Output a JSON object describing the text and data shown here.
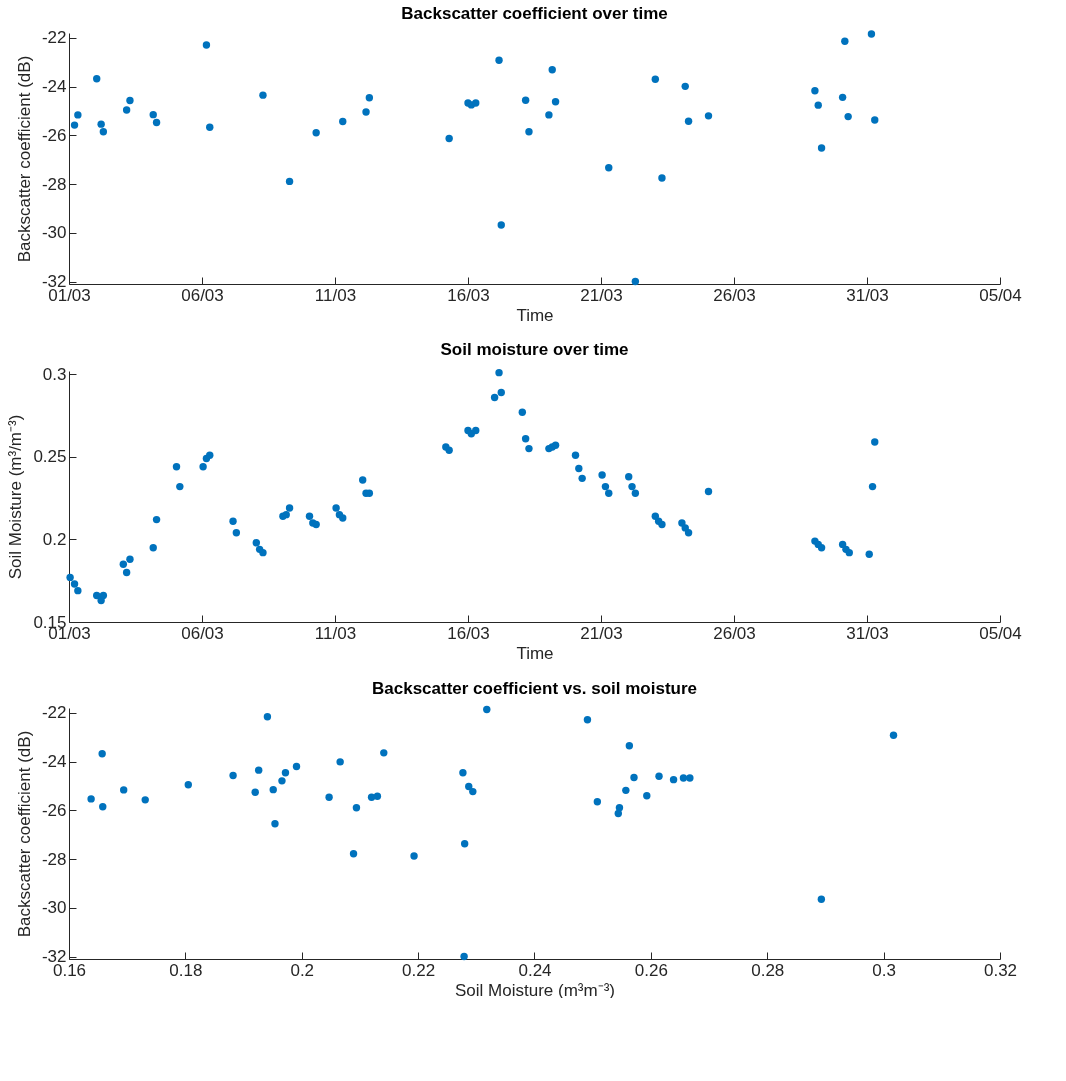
{
  "chart_data": [
    {
      "type": "scatter",
      "title": "Backscatter coefficient over time",
      "xlabel": "Time",
      "ylabel": "Backscatter coefficient (dB)",
      "marker": "circle",
      "xlim": [
        "--03-01",
        "--04-05"
      ],
      "xticks": [
        {
          "value": "--03-01",
          "label": "01/03"
        },
        {
          "value": "--03-06",
          "label": "06/03"
        },
        {
          "value": "--03-11",
          "label": "11/03"
        },
        {
          "value": "--03-16",
          "label": "16/03"
        },
        {
          "value": "--03-21",
          "label": "21/03"
        },
        {
          "value": "--03-26",
          "label": "26/03"
        },
        {
          "value": "--03-31",
          "label": "31/03"
        },
        {
          "value": "--04-05",
          "label": "05/04"
        }
      ],
      "ylim": [
        -32.1,
        -21.8
      ],
      "yticks": [
        -32,
        -30,
        -28,
        -26,
        -24,
        -22
      ],
      "series": [
        {
          "color": "#0072bd",
          "x": [
            "--03-01T05:00",
            "--03-01T08:00",
            "--03-02T01:00",
            "--03-02T05:00",
            "--03-02T07:00",
            "--03-03T04:00",
            "--03-03T07:00",
            "--03-04T04:00",
            "--03-04T07:00",
            "--03-06T04:00",
            "--03-06T07:00",
            "--03-08T07:00",
            "--03-09T07:00",
            "--03-10T07:00",
            "--03-11T07:00",
            "--03-12T04:00",
            "--03-12T07:00",
            "--03-15T07:00",
            "--03-16T00:00",
            "--03-16T03:00",
            "--03-16T07:00",
            "--03-17T04:00",
            "--03-17T06:00",
            "--03-18T04:00",
            "--03-18T07:00",
            "--03-19T01:00",
            "--03-19T04:00",
            "--03-19T07:00",
            "--03-21T07:00",
            "--03-22T07:00",
            "--03-23T01:00",
            "--03-23T07:00",
            "--03-24T04:00",
            "--03-24T07:00",
            "--03-25T01:00",
            "--03-29T01:00",
            "--03-29T04:00",
            "--03-29T07:00",
            "--03-30T02:00",
            "--03-30T04:00",
            "--03-30T07:00",
            "--03-31T04:00",
            "--03-31T07:00"
          ],
          "values": [
            -25.58,
            -25.16,
            -23.68,
            -25.54,
            -25.85,
            -24.96,
            -24.57,
            -25.15,
            -25.47,
            -22.29,
            -25.67,
            -24.35,
            -27.89,
            -25.89,
            -25.43,
            -25.04,
            -24.46,
            -26.13,
            -24.67,
            -24.75,
            -24.67,
            -22.92,
            -29.68,
            -24.56,
            -25.85,
            -25.16,
            -23.31,
            -24.62,
            -27.33,
            -32.0,
            -23.7,
            -27.75,
            -23.99,
            -25.42,
            -25.2,
            -24.17,
            -24.76,
            -26.52,
            -24.44,
            -22.14,
            -25.23,
            -21.84,
            -25.37
          ]
        }
      ]
    },
    {
      "type": "scatter",
      "title": "Soil moisture over time",
      "xlabel": "Time",
      "ylabel": "Soil Moisture (m³/m⁻³)",
      "marker": "circle",
      "xlim": [
        "--03-01",
        "--04-05"
      ],
      "xticks": [
        {
          "value": "--03-01",
          "label": "01/03"
        },
        {
          "value": "--03-06",
          "label": "06/03"
        },
        {
          "value": "--03-11",
          "label": "11/03"
        },
        {
          "value": "--03-16",
          "label": "16/03"
        },
        {
          "value": "--03-21",
          "label": "21/03"
        },
        {
          "value": "--03-26",
          "label": "26/03"
        },
        {
          "value": "--03-31",
          "label": "31/03"
        },
        {
          "value": "--04-05",
          "label": "05/04"
        }
      ],
      "ylim": [
        0.15,
        0.302
      ],
      "yticks": [
        0.15,
        0.2,
        0.25,
        0.3
      ],
      "series": [
        {
          "color": "#0072bd",
          "x": [
            "--03-01T01:00",
            "--03-01T05:00",
            "--03-01T08:00",
            "--03-02T01:00",
            "--03-02T05:00",
            "--03-02T07:00",
            "--03-03T01:00",
            "--03-03T04:00",
            "--03-03T07:00",
            "--03-04T04:00",
            "--03-04T07:00",
            "--03-05T01:00",
            "--03-05T04:00",
            "--03-06T01:00",
            "--03-06T04:00",
            "--03-06T07:00",
            "--03-07T04:00",
            "--03-07T07:00",
            "--03-08T01:00",
            "--03-08T04:00",
            "--03-08T07:00",
            "--03-09T01:00",
            "--03-09T04:00",
            "--03-09T07:00",
            "--03-10T01:00",
            "--03-10T04:00",
            "--03-10T07:00",
            "--03-11T01:00",
            "--03-11T04:00",
            "--03-11T07:00",
            "--03-12T01:00",
            "--03-12T04:00",
            "--03-12T07:00",
            "--03-15T04:00",
            "--03-15T07:00",
            "--03-16T00:00",
            "--03-16T03:00",
            "--03-16T07:00",
            "--03-17T00:00",
            "--03-17T04:00",
            "--03-17T06:00",
            "--03-18T01:00",
            "--03-18T04:00",
            "--03-18T07:00",
            "--03-19T01:00",
            "--03-19T04:00",
            "--03-19T07:00",
            "--03-20T01:00",
            "--03-20T04:00",
            "--03-20T07:00",
            "--03-21T01:00",
            "--03-21T04:00",
            "--03-21T07:00",
            "--03-22T01:00",
            "--03-22T04:00",
            "--03-22T07:00",
            "--03-23T01:00",
            "--03-23T04:00",
            "--03-23T07:00",
            "--03-24T01:00",
            "--03-24T04:00",
            "--03-24T07:00",
            "--03-25T01:00",
            "--03-29T01:00",
            "--03-29T04:00",
            "--03-29T07:00",
            "--03-30T02:00",
            "--03-30T05:00",
            "--03-30T08:00",
            "--03-31T02:00",
            "--03-31T05:00",
            "--03-31T07:00"
          ],
          "values": [
            0.177,
            0.173,
            0.169,
            0.166,
            0.163,
            0.166,
            0.185,
            0.18,
            0.188,
            0.195,
            0.212,
            0.244,
            0.232,
            0.244,
            0.249,
            0.251,
            0.211,
            0.204,
            0.198,
            0.194,
            0.192,
            0.214,
            0.215,
            0.219,
            0.214,
            0.21,
            0.209,
            0.219,
            0.215,
            0.213,
            0.236,
            0.228,
            0.228,
            0.256,
            0.254,
            0.266,
            0.264,
            0.266,
            0.286,
            0.301,
            0.289,
            0.277,
            0.261,
            0.255,
            0.255,
            0.256,
            0.257,
            0.251,
            0.243,
            0.237,
            0.239,
            0.232,
            0.228,
            0.238,
            0.232,
            0.228,
            0.214,
            0.211,
            0.209,
            0.21,
            0.207,
            0.204,
            0.229,
            0.199,
            0.197,
            0.195,
            0.197,
            0.194,
            0.192,
            0.191,
            0.232,
            0.259
          ]
        }
      ]
    },
    {
      "type": "scatter",
      "title": "Backscatter coefficient vs. soil moisture",
      "xlabel": "Soil Moisture (m³m⁻³)",
      "ylabel": "Backscatter coefficient (dB)",
      "marker": "circle",
      "xlim": [
        0.16,
        0.32
      ],
      "xticks": [
        0.16,
        0.18,
        0.2,
        0.22,
        0.24,
        0.26,
        0.28,
        0.3,
        0.32
      ],
      "ylim": [
        -32.1,
        -21.8
      ],
      "yticks": [
        -32,
        -30,
        -28,
        -26,
        -24,
        -22
      ],
      "series": [
        {
          "color": "#0072bd",
          "x": [
            0.1638,
            0.1657,
            0.1658,
            0.1694,
            0.1731,
            0.1805,
            0.1882,
            0.192,
            0.1926,
            0.1941,
            0.1951,
            0.1954,
            0.1966,
            0.1972,
            0.1991,
            0.2047,
            0.2066,
            0.2089,
            0.2094,
            0.212,
            0.213,
            0.2141,
            0.2193,
            0.2277,
            0.228,
            0.2279,
            0.2287,
            0.2294,
            0.2318,
            0.2491,
            0.2563,
            0.2571,
            0.2614,
            0.2639,
            0.2656,
            0.2667,
            0.2557,
            0.2508,
            0.2546,
            0.2544,
            0.2593,
            0.2893,
            0.3017
          ],
          "values": [
            -25.53,
            -23.68,
            -25.85,
            -25.16,
            -25.57,
            -24.95,
            -24.57,
            -25.26,
            -24.35,
            -22.16,
            -25.15,
            -26.55,
            -24.79,
            -24.46,
            -24.2,
            -25.46,
            -24.01,
            -27.78,
            -25.89,
            -25.46,
            -25.42,
            -23.64,
            -27.87,
            -24.46,
            -27.37,
            -32.0,
            -25.02,
            -25.23,
            -21.86,
            -22.28,
            -23.35,
            -24.65,
            -24.6,
            -24.74,
            -24.67,
            -24.67,
            -25.18,
            -25.65,
            -25.89,
            -26.13,
            -25.4,
            -29.65,
            -22.92
          ]
        }
      ]
    }
  ]
}
